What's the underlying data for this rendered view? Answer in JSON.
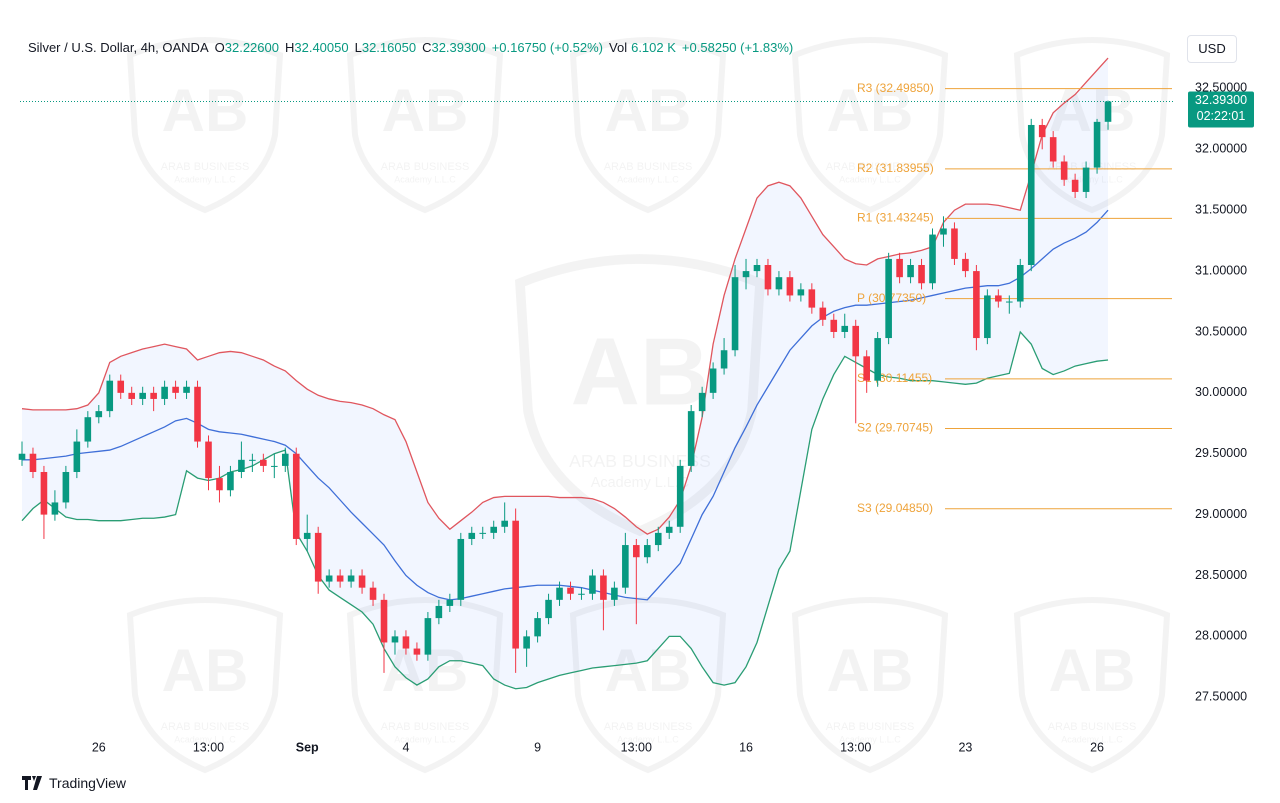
{
  "header": {
    "symbol": "Silver / U.S. Dollar, 4h, OANDA",
    "fields": [
      {
        "key": "O",
        "text": "32.22600"
      },
      {
        "key": "H",
        "text": "32.40050"
      },
      {
        "key": "L",
        "text": "32.16050"
      },
      {
        "key": "C",
        "text": "32.39300"
      }
    ],
    "change": "+0.16750 (+0.52%)",
    "volume_label": "Vol",
    "volume": "6.102 K",
    "volume_change": "+0.58250 (+1.83%)",
    "currency": "USD",
    "brand": "TradingView"
  },
  "watermark": {
    "logo": "AB",
    "line1": "ARAB BUSINESS",
    "line2": "Academy L.L.C"
  },
  "chart_data": {
    "type": "candlestick",
    "categories": [
      null,
      null,
      null,
      null,
      null,
      null,
      null,
      "26",
      null,
      null,
      null,
      null,
      null,
      null,
      null,
      null,
      null,
      "13:00",
      null,
      null,
      null,
      null,
      null,
      null,
      null,
      null,
      "Sep",
      null,
      null,
      null,
      null,
      null,
      null,
      null,
      null,
      "4",
      null,
      null,
      null,
      null,
      null,
      null,
      null,
      null,
      null,
      null,
      null,
      "9",
      null,
      null,
      null,
      null,
      null,
      null,
      null,
      null,
      "13:00",
      null,
      null,
      null,
      null,
      null,
      null,
      null,
      null,
      null,
      "16",
      null,
      null,
      null,
      null,
      null,
      null,
      null,
      null,
      null,
      "13:00",
      null,
      null,
      null,
      null,
      null,
      null,
      null,
      null,
      null,
      "23",
      null,
      null,
      null,
      null,
      null,
      null,
      null,
      null,
      null,
      null,
      null,
      "26",
      null
    ],
    "bold_categories": [
      "Sep"
    ],
    "open": [
      29.45,
      29.5,
      29.35,
      29.0,
      29.1,
      29.35,
      29.6,
      29.8,
      29.85,
      30.1,
      30.0,
      29.95,
      30.0,
      29.95,
      30.05,
      30.0,
      30.05,
      29.6,
      29.3,
      29.2,
      29.35,
      29.45,
      29.45,
      29.4,
      29.4,
      29.5,
      28.8,
      28.85,
      28.45,
      28.5,
      28.45,
      28.5,
      28.4,
      28.3,
      27.95,
      28.0,
      27.9,
      27.85,
      28.15,
      28.25,
      28.3,
      28.8,
      28.85,
      28.85,
      28.9,
      28.95,
      27.9,
      28.0,
      28.15,
      28.3,
      28.4,
      28.35,
      28.35,
      28.5,
      28.3,
      28.4,
      28.75,
      28.65,
      28.75,
      28.85,
      28.9,
      29.4,
      29.85,
      30.0,
      30.2,
      30.35,
      30.95,
      31.0,
      31.05,
      30.85,
      30.95,
      30.8,
      30.85,
      30.7,
      30.6,
      30.5,
      30.55,
      30.3,
      30.1,
      30.45,
      31.1,
      30.95,
      31.05,
      30.9,
      31.3,
      31.35,
      31.1,
      31.0,
      30.45,
      30.8,
      30.75,
      30.75,
      31.05,
      32.2,
      32.1,
      31.9,
      31.75,
      31.65,
      31.85,
      32.226
    ],
    "high": [
      29.6,
      29.55,
      29.4,
      29.2,
      29.4,
      29.7,
      29.85,
      29.9,
      30.15,
      30.15,
      30.05,
      30.05,
      30.05,
      30.1,
      30.1,
      30.1,
      30.1,
      29.65,
      29.4,
      29.4,
      29.6,
      29.5,
      29.5,
      29.5,
      29.55,
      29.55,
      29.0,
      28.9,
      28.55,
      28.55,
      28.55,
      28.55,
      28.45,
      28.35,
      28.05,
      28.05,
      27.95,
      28.2,
      28.3,
      28.35,
      28.85,
      28.9,
      28.9,
      28.95,
      29.1,
      29.05,
      28.05,
      28.2,
      28.35,
      28.45,
      28.45,
      28.4,
      28.55,
      28.55,
      28.45,
      28.85,
      28.8,
      28.8,
      28.9,
      28.95,
      29.45,
      29.9,
      30.05,
      30.25,
      30.45,
      31.05,
      31.1,
      31.1,
      31.1,
      31.0,
      31.0,
      30.9,
      30.9,
      30.75,
      30.65,
      30.65,
      30.6,
      30.35,
      30.5,
      31.15,
      31.15,
      31.1,
      31.1,
      31.35,
      31.45,
      31.4,
      31.15,
      31.05,
      30.85,
      30.85,
      30.8,
      31.1,
      32.25,
      32.25,
      32.15,
      31.95,
      31.8,
      31.9,
      32.25,
      32.4005
    ],
    "low": [
      29.4,
      29.3,
      28.8,
      28.95,
      29.05,
      29.3,
      29.55,
      29.75,
      29.8,
      29.95,
      29.9,
      29.9,
      29.85,
      29.9,
      29.95,
      29.95,
      29.55,
      29.2,
      29.1,
      29.15,
      29.3,
      29.35,
      29.35,
      29.3,
      29.35,
      28.75,
      28.7,
      28.35,
      28.4,
      28.4,
      28.4,
      28.35,
      28.25,
      27.7,
      27.85,
      27.85,
      27.8,
      27.8,
      28.1,
      28.2,
      28.25,
      28.75,
      28.8,
      28.8,
      28.85,
      27.7,
      27.75,
      27.95,
      28.1,
      28.25,
      28.3,
      28.3,
      28.3,
      28.05,
      28.25,
      28.35,
      28.1,
      28.6,
      28.7,
      28.8,
      28.85,
      29.35,
      29.8,
      29.95,
      30.15,
      30.3,
      30.85,
      30.95,
      30.8,
      30.8,
      30.75,
      30.75,
      30.65,
      30.55,
      30.45,
      30.45,
      29.75,
      30.0,
      30.05,
      30.4,
      30.9,
      30.9,
      30.85,
      30.85,
      31.2,
      31.05,
      30.95,
      30.35,
      30.4,
      30.7,
      30.65,
      30.7,
      31.0,
      32.0,
      31.85,
      31.7,
      31.6,
      31.6,
      31.8,
      32.1605
    ],
    "close": [
      29.5,
      29.35,
      29.0,
      29.1,
      29.35,
      29.6,
      29.8,
      29.85,
      30.1,
      30.0,
      29.95,
      30.0,
      29.95,
      30.05,
      30.0,
      30.05,
      29.6,
      29.3,
      29.2,
      29.35,
      29.45,
      29.45,
      29.4,
      29.4,
      29.5,
      28.8,
      28.85,
      28.45,
      28.5,
      28.45,
      28.5,
      28.4,
      28.3,
      27.95,
      28.0,
      27.9,
      27.85,
      28.15,
      28.25,
      28.3,
      28.8,
      28.85,
      28.85,
      28.9,
      28.95,
      27.9,
      28.0,
      28.15,
      28.3,
      28.4,
      28.35,
      28.35,
      28.5,
      28.3,
      28.4,
      28.75,
      28.65,
      28.75,
      28.85,
      28.9,
      29.4,
      29.85,
      30.0,
      30.2,
      30.35,
      30.95,
      31.0,
      31.05,
      30.85,
      30.95,
      30.8,
      30.85,
      30.7,
      30.6,
      30.5,
      30.55,
      30.3,
      30.1,
      30.45,
      31.1,
      30.95,
      31.05,
      30.9,
      31.3,
      31.35,
      31.1,
      31.0,
      30.45,
      30.8,
      30.75,
      30.75,
      31.05,
      32.2,
      32.1,
      31.9,
      31.75,
      31.65,
      31.85,
      32.2255,
      32.393
    ],
    "up_color": "#089981",
    "down_color": "#f23645",
    "bands": {
      "upper": {
        "color": "#e0565e",
        "values": [
          29.87,
          29.86,
          29.86,
          29.86,
          29.86,
          29.87,
          29.9,
          30.0,
          30.25,
          30.3,
          30.33,
          30.36,
          30.38,
          30.4,
          30.38,
          30.36,
          30.27,
          30.3,
          30.33,
          30.34,
          30.33,
          30.3,
          30.27,
          30.22,
          30.18,
          30.1,
          30.03,
          29.98,
          29.95,
          29.93,
          29.92,
          29.9,
          29.87,
          29.82,
          29.78,
          29.6,
          29.35,
          29.1,
          28.97,
          28.88,
          28.95,
          29.02,
          29.1,
          29.14,
          29.15,
          29.15,
          29.15,
          29.15,
          29.15,
          29.14,
          29.14,
          29.14,
          29.13,
          29.1,
          29.05,
          28.98,
          28.9,
          28.84,
          28.88,
          28.98,
          29.12,
          29.4,
          29.8,
          30.4,
          30.8,
          31.1,
          31.35,
          31.6,
          31.7,
          31.73,
          31.7,
          31.6,
          31.45,
          31.3,
          31.2,
          31.1,
          31.06,
          31.05,
          31.1,
          31.12,
          31.14,
          31.15,
          31.17,
          31.2,
          31.4,
          31.5,
          31.55,
          31.55,
          31.55,
          31.54,
          31.52,
          31.5,
          31.8,
          32.12,
          32.3,
          32.38,
          32.45,
          32.55,
          32.65,
          32.75
        ]
      },
      "middle": {
        "color": "#3f6fd8",
        "values": [
          29.45,
          29.45,
          29.46,
          29.47,
          29.48,
          29.5,
          29.51,
          29.52,
          29.53,
          29.56,
          29.6,
          29.64,
          29.68,
          29.72,
          29.77,
          29.79,
          29.75,
          29.7,
          29.68,
          29.67,
          29.66,
          29.64,
          29.62,
          29.6,
          29.57,
          29.5,
          29.4,
          29.3,
          29.22,
          29.12,
          29.02,
          28.93,
          28.84,
          28.75,
          28.62,
          28.5,
          28.42,
          28.36,
          28.32,
          28.3,
          28.31,
          28.33,
          28.35,
          28.37,
          28.39,
          28.4,
          28.41,
          28.42,
          28.42,
          28.42,
          28.41,
          28.4,
          28.38,
          28.36,
          28.34,
          28.32,
          28.31,
          28.3,
          28.4,
          28.5,
          28.6,
          28.8,
          29.0,
          29.15,
          29.35,
          29.55,
          29.72,
          29.9,
          30.05,
          30.2,
          30.35,
          30.45,
          30.55,
          30.62,
          30.67,
          30.7,
          30.72,
          30.72,
          30.73,
          30.74,
          30.75,
          30.76,
          30.78,
          30.8,
          30.82,
          30.84,
          30.86,
          30.87,
          30.88,
          30.88,
          30.9,
          30.95,
          31.02,
          31.1,
          31.18,
          31.23,
          31.27,
          31.32,
          31.4,
          31.5
        ]
      },
      "lower": {
        "color": "#2a9d74",
        "values": [
          28.95,
          29.05,
          29.12,
          29.05,
          28.98,
          28.96,
          28.96,
          28.95,
          28.95,
          28.95,
          28.96,
          28.97,
          28.97,
          28.98,
          29.0,
          29.36,
          29.3,
          29.28,
          29.3,
          29.35,
          29.37,
          29.4,
          29.45,
          29.5,
          29.53,
          28.85,
          28.7,
          28.5,
          28.38,
          28.32,
          28.26,
          28.2,
          28.1,
          27.9,
          27.75,
          27.66,
          27.6,
          27.65,
          27.75,
          27.8,
          27.8,
          27.78,
          27.76,
          27.65,
          27.6,
          27.57,
          27.58,
          27.62,
          27.65,
          27.68,
          27.7,
          27.72,
          27.74,
          27.75,
          27.76,
          27.77,
          27.78,
          27.8,
          27.9,
          28.0,
          28.0,
          27.9,
          27.75,
          27.62,
          27.6,
          27.62,
          27.75,
          27.95,
          28.25,
          28.55,
          28.7,
          29.2,
          29.7,
          29.95,
          30.15,
          30.3,
          30.25,
          30.2,
          30.15,
          30.13,
          30.12,
          30.1,
          30.1,
          30.1,
          30.09,
          30.08,
          30.07,
          30.08,
          30.12,
          30.14,
          30.16,
          30.5,
          30.4,
          30.2,
          30.15,
          30.18,
          30.22,
          30.24,
          30.26,
          30.27
        ]
      },
      "fill": "rgba(41,98,255,0.06)"
    },
    "levels": [
      {
        "label": "R3 (32.49850)",
        "value": 32.4985
      },
      {
        "label": "R2 (31.83955)",
        "value": 31.83955
      },
      {
        "label": "R1 (31.43245)",
        "value": 31.43245
      },
      {
        "label": "P (30.77350)",
        "value": 30.7735
      },
      {
        "label": "S1 (30.11455)",
        "value": 30.11455
      },
      {
        "label": "S2 (29.70745)",
        "value": 29.70745
      },
      {
        "label": "S3 (29.04850)",
        "value": 29.0485
      }
    ],
    "level_color": "#eea33a",
    "last_price": {
      "value": 32.393,
      "label": "32.39300",
      "countdown": "02:22:01",
      "color": "#089981"
    },
    "ylim": [
      27.19,
      32.98
    ],
    "yticks": [
      {
        "value": 27.5,
        "label": "27.50000"
      },
      {
        "value": 28,
        "label": "28.00000"
      },
      {
        "value": 28.5,
        "label": "28.50000"
      },
      {
        "value": 29,
        "label": "29.00000"
      },
      {
        "value": 29.5,
        "label": "29.50000"
      },
      {
        "value": 30,
        "label": "30.00000"
      },
      {
        "value": 30.5,
        "label": "30.50000"
      },
      {
        "value": 31,
        "label": "31.00000"
      },
      {
        "value": 31.5,
        "label": "31.50000"
      },
      {
        "value": 32,
        "label": "32.00000"
      },
      {
        "value": 32.5,
        "label": "32.50000"
      }
    ],
    "grid": false
  }
}
